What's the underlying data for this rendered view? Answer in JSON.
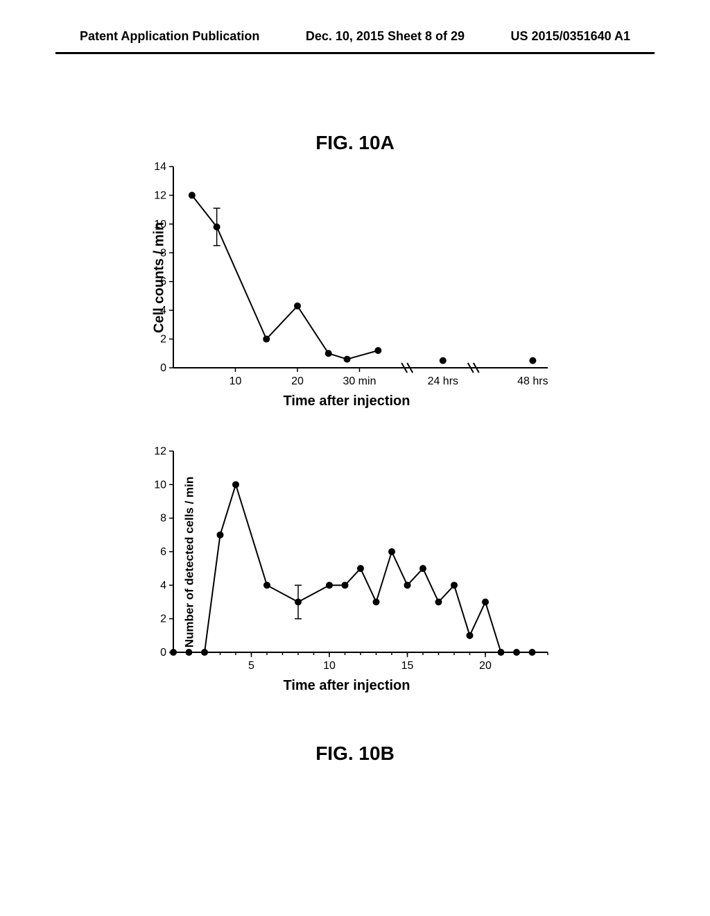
{
  "header": {
    "left": "Patent Application Publication",
    "center": "Dec. 10, 2015  Sheet 8 of 29",
    "right": "US 2015/0351640 A1"
  },
  "figA": {
    "title": "FIG. 10A",
    "type": "line",
    "ylabel": "Cell counts / min",
    "xlabel": "Time after injection",
    "ylim": [
      0,
      14
    ],
    "ytick_step": 2,
    "title_fontsize": 28,
    "label_fontsize": 20,
    "tick_fontsize": 16,
    "marker_radius": 5,
    "line_width": 2,
    "background_color": "#ffffff",
    "line_color": "#000000",
    "marker_color": "#000000",
    "xticks_numeric": [
      10,
      20,
      30
    ],
    "xtick_labels_numeric": [
      "10",
      "20",
      "30 min"
    ],
    "xtick_labels_after_break": [
      "24 hrs",
      "48 hrs"
    ],
    "segments": [
      {
        "range": "numeric",
        "points": [
          {
            "x": 3,
            "y": 12
          },
          {
            "x": 7,
            "y": 9.8,
            "err": 1.3
          },
          {
            "x": 15,
            "y": 2.0
          },
          {
            "x": 20,
            "y": 4.3
          },
          {
            "x": 25,
            "y": 1.0
          },
          {
            "x": 28,
            "y": 0.6
          },
          {
            "x": 33,
            "y": 1.2
          }
        ]
      },
      {
        "range": "24hrs",
        "points": [
          {
            "x": 0,
            "y": 0.5
          }
        ]
      },
      {
        "range": "48hrs",
        "points": [
          {
            "x": 0,
            "y": 0.5
          }
        ]
      }
    ]
  },
  "figB": {
    "title": "FIG. 10B",
    "type": "line",
    "ylabel": "Number of detected cells / min",
    "xlabel": "Time after injection",
    "ylim": [
      0,
      12
    ],
    "ytick_step": 2,
    "xlim": [
      0,
      24
    ],
    "xtick_step": 5,
    "title_fontsize": 28,
    "label_fontsize": 20,
    "tick_fontsize": 16,
    "marker_radius": 5,
    "line_width": 2,
    "background_color": "#ffffff",
    "line_color": "#000000",
    "marker_color": "#000000",
    "points": [
      {
        "x": 0,
        "y": 0
      },
      {
        "x": 1,
        "y": 0
      },
      {
        "x": 2,
        "y": 0
      },
      {
        "x": 3,
        "y": 7
      },
      {
        "x": 4,
        "y": 10
      },
      {
        "x": 6,
        "y": 4
      },
      {
        "x": 8,
        "y": 3,
        "err": 1
      },
      {
        "x": 10,
        "y": 4
      },
      {
        "x": 11,
        "y": 4
      },
      {
        "x": 12,
        "y": 5
      },
      {
        "x": 13,
        "y": 3
      },
      {
        "x": 14,
        "y": 6
      },
      {
        "x": 15,
        "y": 4
      },
      {
        "x": 16,
        "y": 5
      },
      {
        "x": 17,
        "y": 3
      },
      {
        "x": 18,
        "y": 4
      },
      {
        "x": 19,
        "y": 1
      },
      {
        "x": 20,
        "y": 3
      },
      {
        "x": 21,
        "y": 0
      },
      {
        "x": 22,
        "y": 0
      },
      {
        "x": 23,
        "y": 0
      }
    ]
  }
}
